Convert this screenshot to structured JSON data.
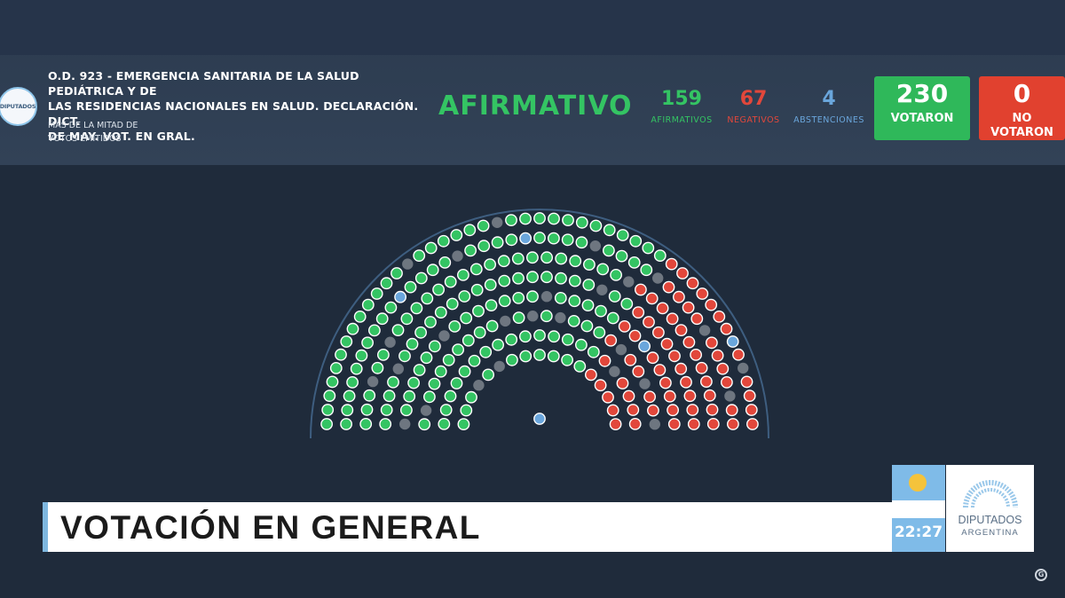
{
  "header": {
    "logo_text": "DIPUTADOS",
    "title_lines": [
      "O.D. 923 - EMERGENCIA SANITARIA DE LA SALUD PEDIÁTRICA Y DE",
      "LAS RESIDENCIAS NACIONALES EN SALUD. DECLARACIÓN. DICT.",
      "DE MAY. VOT. EN GRAL."
    ],
    "subtitle_lines": [
      "MÁS DE LA MITAD DE",
      "VOTOS EMITIDOS"
    ],
    "result": "AFIRMATIVO",
    "stats": [
      {
        "value": "159",
        "label": "AFIRMATIVOS",
        "color": "#34c463"
      },
      {
        "value": "67",
        "label": "NEGATIVOS",
        "color": "#e2473b"
      },
      {
        "value": "4",
        "label": "ABSTENCIONES",
        "color": "#6aa6dc"
      }
    ],
    "votaron": {
      "value": "230",
      "label": "VOTARON",
      "color": "#2fb85a"
    },
    "no_votaron": {
      "value": "0",
      "label_line1": "NO",
      "label_line2": "VOTARON",
      "color": "#e1412f"
    }
  },
  "hemicycle": {
    "colors": {
      "afirmativo": "#34c463",
      "negativo": "#e2473b",
      "abstencion": "#6aa6dc",
      "ausente": "#6e7680",
      "presidente": "#6aa6dc"
    },
    "totals": {
      "afirmativo": 159,
      "negativo": 67,
      "abstencion": 4,
      "ausente": 26
    }
  },
  "banner": {
    "text": "VOTACIÓN EN GENERAL"
  },
  "footer": {
    "clock": "22:27",
    "brand_line1": "DIPUTADOS",
    "brand_line2": "ARGENTINA"
  }
}
